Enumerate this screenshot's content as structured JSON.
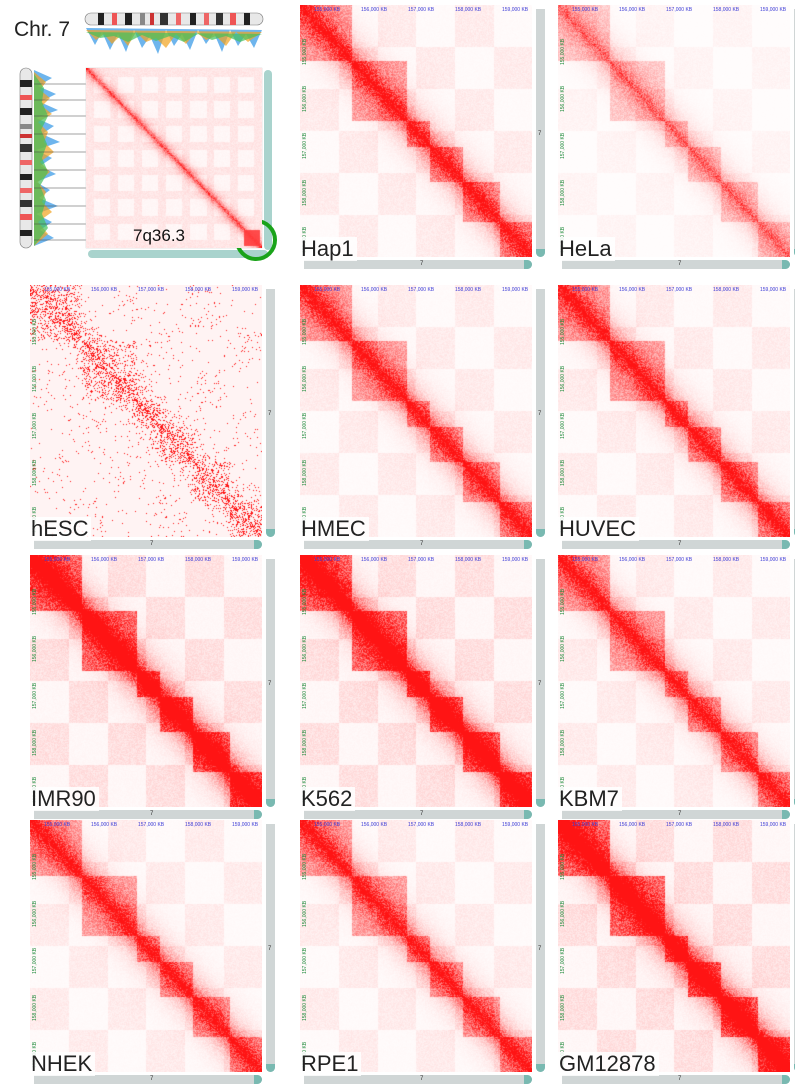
{
  "figure": {
    "chromosome_label": "Chr. 7",
    "region_label": "7q36.3",
    "track_label": "7",
    "top_tick_labels": [
      "155,000 KB",
      "156,000 KB",
      "157,000 KB",
      "158,000 KB",
      "159,000 KB"
    ],
    "left_tick_labels": [
      "155,000 KB",
      "156,000 KB",
      "157,000 KB",
      "158,000 KB",
      "159,000 KB"
    ],
    "colors": {
      "contact": "#ff1a1a",
      "background": "#ffffff",
      "track": "#d0d6d6",
      "track_accent": "#79b9b1",
      "circle": "#1aa31a",
      "arrow": "#1a7a1a"
    }
  },
  "panels": [
    {
      "id": "hap1",
      "name": "Hap1",
      "style": "tad"
    },
    {
      "id": "hela",
      "name": "HeLa",
      "style": "weak"
    },
    {
      "id": "hesc",
      "name": "hESC",
      "style": "sparse"
    },
    {
      "id": "hmec",
      "name": "HMEC",
      "style": "tad"
    },
    {
      "id": "huvec",
      "name": "HUVEC",
      "style": "tad"
    },
    {
      "id": "imr90",
      "name": "IMR90",
      "style": "strong"
    },
    {
      "id": "k562",
      "name": "K562",
      "style": "strong"
    },
    {
      "id": "kbm7",
      "name": "KBM7",
      "style": "tad"
    },
    {
      "id": "nhek",
      "name": "NHEK",
      "style": "tad"
    },
    {
      "id": "rpe1",
      "name": "RPE1",
      "style": "tad"
    },
    {
      "id": "gm12878",
      "name": "GM12878",
      "style": "strong"
    }
  ]
}
